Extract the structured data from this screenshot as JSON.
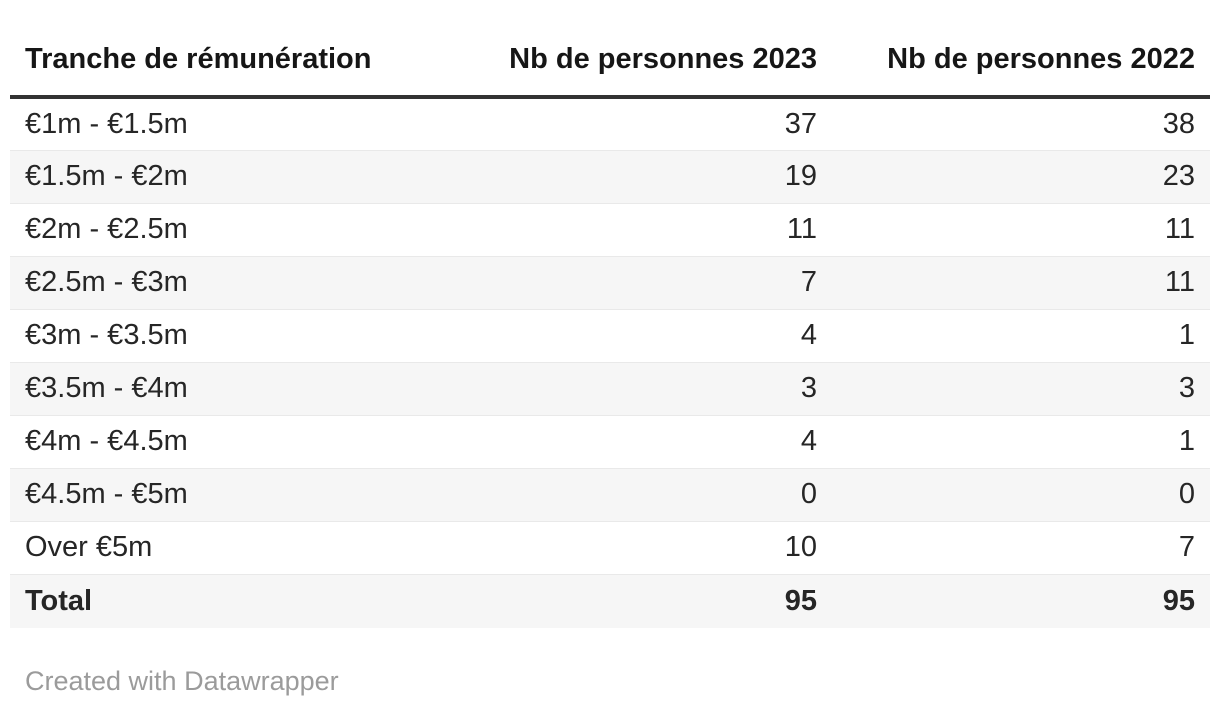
{
  "chart_data": {
    "type": "table",
    "columns": [
      "Tranche de rémunération",
      "Nb de personnes 2023",
      "Nb de personnes 2022"
    ],
    "rows": [
      [
        "€1m - €1.5m",
        37,
        38
      ],
      [
        "€1.5m - €2m",
        19,
        23
      ],
      [
        "€2m - €2.5m",
        11,
        11
      ],
      [
        "€2.5m - €3m",
        7,
        11
      ],
      [
        "€3m - €3.5m",
        4,
        1
      ],
      [
        "€3.5m - €4m",
        3,
        3
      ],
      [
        "€4m - €4.5m",
        4,
        1
      ],
      [
        "€4.5m - €5m",
        0,
        0
      ],
      [
        "Over €5m",
        10,
        7
      ],
      [
        "Total",
        95,
        95
      ]
    ],
    "bold_rows": [
      9
    ],
    "striped_rows": "even (2nd, 4th, ... 10th)",
    "column_alignments": [
      "left",
      "right",
      "right"
    ]
  },
  "footer": {
    "credit_label": "Created with Datawrapper"
  },
  "colors": {
    "header_rule": "#323232",
    "stripe": "#f6f6f6",
    "row_divider": "#e9e9e9",
    "body_text": "#262626",
    "header_text": "#161616",
    "credit_text": "#9b9b9b",
    "background": "#ffffff"
  }
}
